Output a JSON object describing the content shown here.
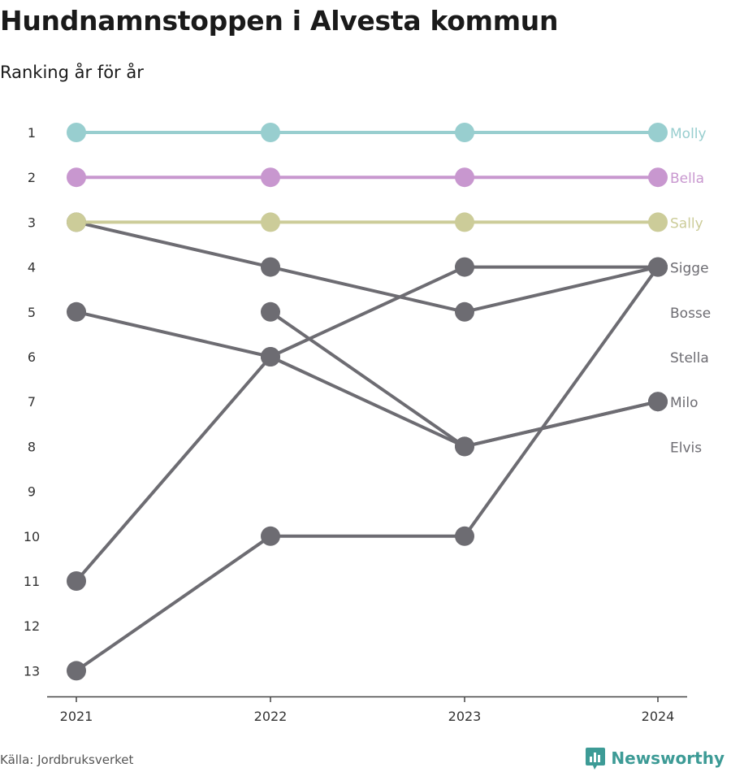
{
  "title": "Hundnamnstoppen i Alvesta kommun",
  "subtitle": "Ranking år för år",
  "source": "Källa: Jordbruksverket",
  "brand": "Newsworthy",
  "colors": {
    "highlight": [
      "#98cecf",
      "#c897cf",
      "#cccc99"
    ],
    "other": "#6d6c72",
    "axis": "#444444",
    "label": "#333333"
  },
  "chart_data": {
    "type": "line",
    "x": [
      "2021",
      "2022",
      "2023",
      "2024"
    ],
    "y_ticks": [
      1,
      2,
      3,
      4,
      5,
      6,
      7,
      8,
      9,
      10,
      11,
      12,
      13
    ],
    "y_reversed": true,
    "ylim": [
      1,
      13
    ],
    "series": [
      {
        "name": "Molly",
        "values": [
          1,
          1,
          1,
          1
        ],
        "color": "#98cecf",
        "highlight": true
      },
      {
        "name": "Bella",
        "values": [
          2,
          2,
          2,
          2
        ],
        "color": "#c897cf",
        "highlight": true
      },
      {
        "name": "Sally",
        "values": [
          3,
          3,
          3,
          3
        ],
        "color": "#cccc99",
        "highlight": true
      },
      {
        "name": "Sigge",
        "values": [
          11,
          6,
          4,
          4
        ],
        "color": "#6d6c72",
        "highlight": false
      },
      {
        "name": "Bosse",
        "values": [
          3,
          4,
          5,
          4
        ],
        "color": "#6d6c72",
        "highlight": false
      },
      {
        "name": "Stella",
        "values": [
          13,
          10,
          10,
          4
        ],
        "color": "#6d6c72",
        "highlight": false
      },
      {
        "name": "Milo",
        "values": [
          5,
          6,
          8,
          7
        ],
        "color": "#6d6c72",
        "highlight": false
      },
      {
        "name": "Elvis",
        "values": [
          null,
          5,
          8,
          7
        ],
        "color": "#6d6c72",
        "highlight": false
      }
    ]
  }
}
